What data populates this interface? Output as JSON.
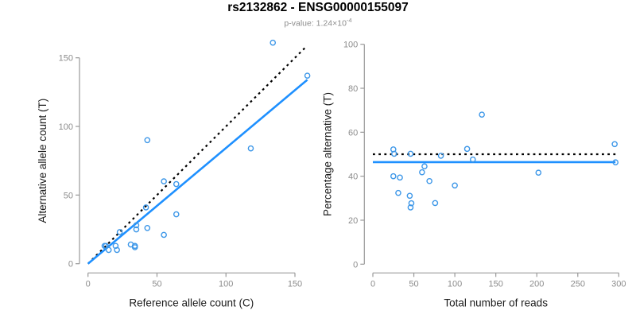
{
  "header": {
    "title": "rs2132862 - ENSG00000155097",
    "subtitle_prefix": "p-value: 1.24×10",
    "subtitle_exponent": "-4"
  },
  "colors": {
    "line_blue": "#1E90FF",
    "point_blue": "#3D97E8",
    "dotted_black": "#000000",
    "axis_gray": "#999999",
    "tick_label_gray": "#8C8C8C",
    "axis_title_black": "#1a1a1a",
    "title_black": "#000000",
    "subtitle_gray": "#8C8C8C"
  },
  "chart_data": [
    {
      "type": "scatter",
      "panel": "left",
      "xlabel": "Reference allele count (C)",
      "ylabel": "Alternative allele count (T)",
      "xlim": [
        0,
        160
      ],
      "ylim": [
        0,
        165
      ],
      "xticks": [
        0,
        50,
        100,
        150
      ],
      "yticks": [
        0,
        50,
        100,
        150
      ],
      "grid": false,
      "legend": "none",
      "points": [
        [
          134,
          161
        ],
        [
          159,
          137
        ],
        [
          43,
          90
        ],
        [
          118,
          84
        ],
        [
          55,
          60
        ],
        [
          64,
          58
        ],
        [
          64,
          36
        ],
        [
          43,
          26
        ],
        [
          55,
          21
        ],
        [
          42,
          41
        ],
        [
          35,
          28
        ],
        [
          35,
          25
        ],
        [
          23,
          23
        ],
        [
          12,
          13
        ],
        [
          13,
          13
        ],
        [
          15,
          10
        ],
        [
          20,
          13
        ],
        [
          21,
          10
        ],
        [
          31,
          14
        ],
        [
          34,
          13
        ],
        [
          34,
          12
        ]
      ],
      "lines": [
        {
          "name": "identity-line",
          "style": "dotted",
          "from": [
            0,
            0
          ],
          "to": [
            158,
            158
          ]
        },
        {
          "name": "fit-line",
          "style": "solid",
          "from": [
            0,
            0
          ],
          "to": [
            159,
            134
          ]
        }
      ]
    },
    {
      "type": "scatter",
      "panel": "right",
      "xlabel": "Total number of reads",
      "ylabel": "Percentage alternative (T)",
      "xlim": [
        0,
        300
      ],
      "ylim": [
        0,
        100
      ],
      "xticks": [
        0,
        50,
        100,
        150,
        200,
        250,
        300
      ],
      "yticks": [
        0,
        20,
        40,
        60,
        80,
        100
      ],
      "grid": false,
      "legend": "none",
      "points": [
        [
          295,
          54.6
        ],
        [
          296,
          46.3
        ],
        [
          133,
          68
        ],
        [
          202,
          41.6
        ],
        [
          115,
          52.4
        ],
        [
          122,
          47.6
        ],
        [
          100,
          35.8
        ],
        [
          69,
          37.8
        ],
        [
          76,
          27.8
        ],
        [
          83,
          49.3
        ],
        [
          63,
          44.5
        ],
        [
          60,
          41.8
        ],
        [
          46,
          50.2
        ],
        [
          25,
          52.2
        ],
        [
          26,
          50.2
        ],
        [
          25,
          40.0
        ],
        [
          33,
          39.4
        ],
        [
          31,
          32.4
        ],
        [
          45,
          31.1
        ],
        [
          47,
          27.7
        ],
        [
          46,
          25.8
        ]
      ],
      "lines": [
        {
          "name": "fifty-percent-line",
          "style": "dotted",
          "y": 50,
          "x1": 0,
          "x2": 296
        },
        {
          "name": "mean-percentage-line",
          "style": "solid",
          "y": 46.4,
          "x1": 0,
          "x2": 296
        }
      ]
    }
  ]
}
